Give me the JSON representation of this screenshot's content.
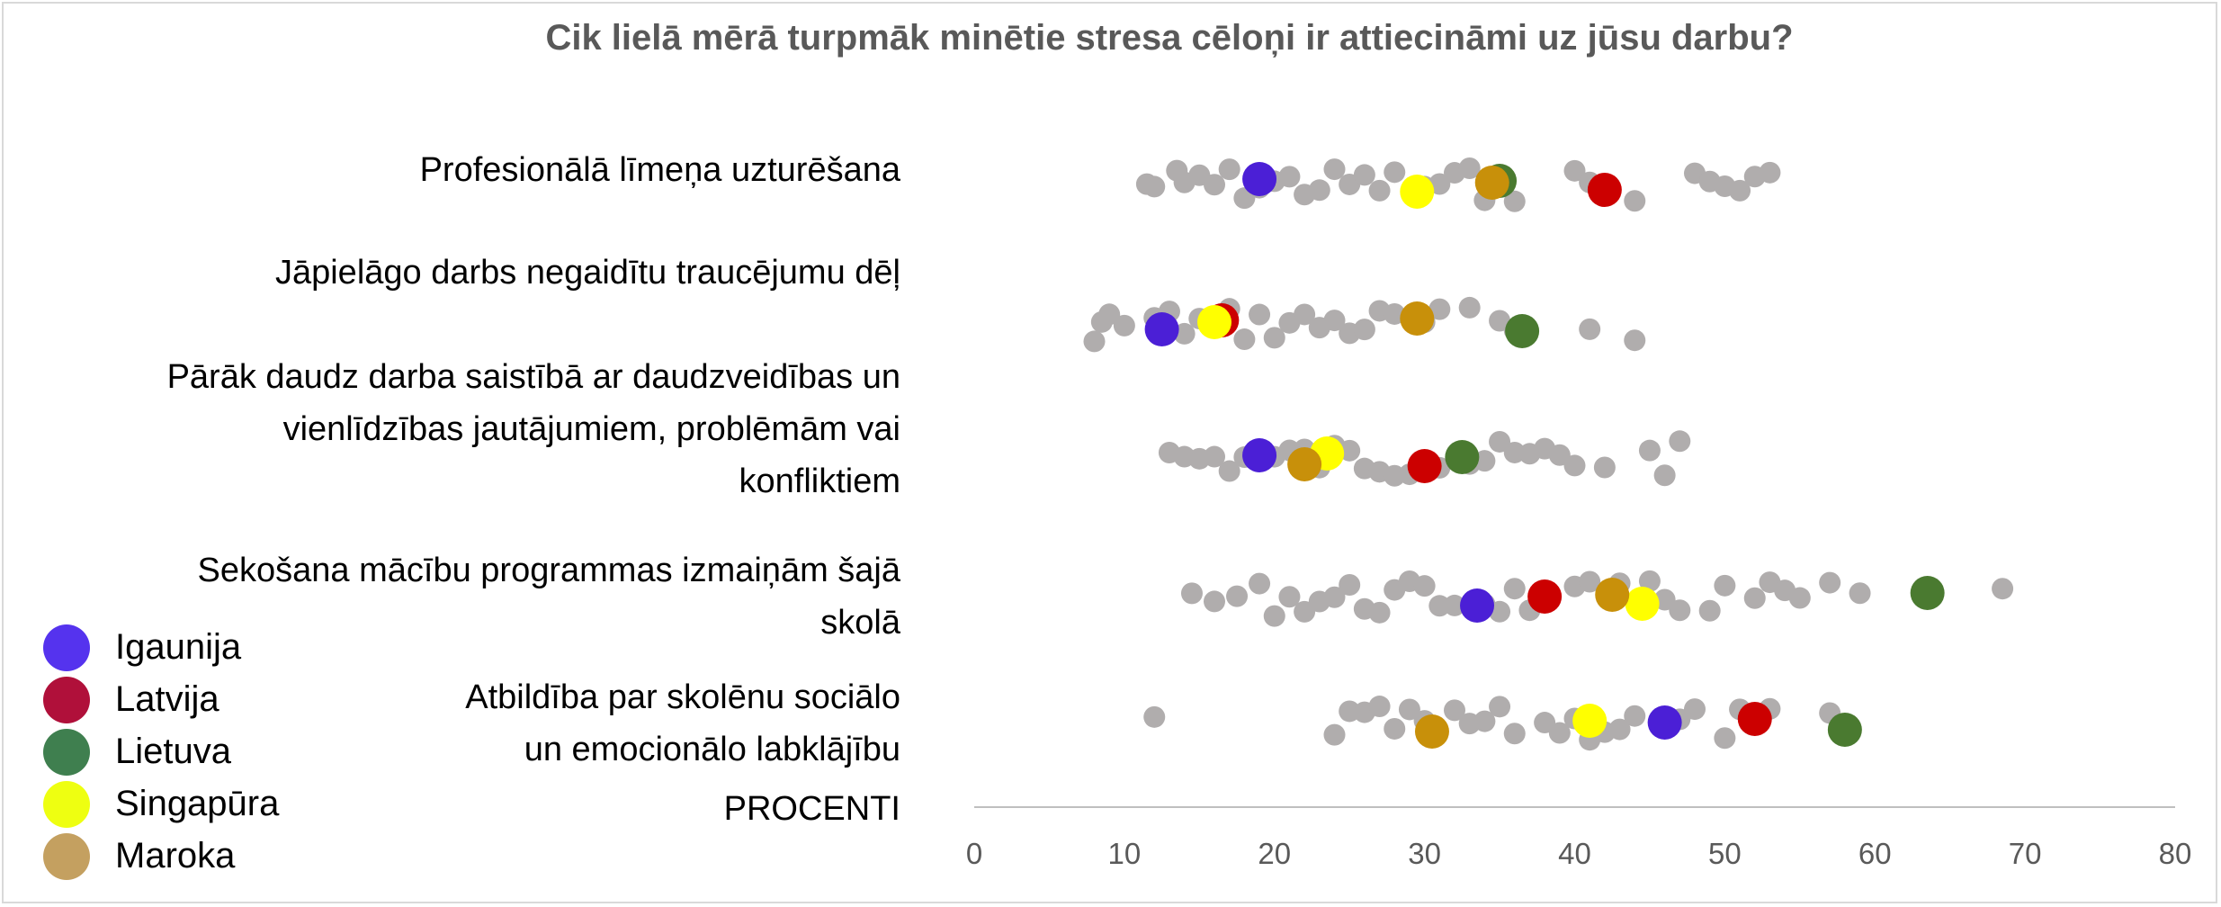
{
  "chart_data": {
    "type": "scatter",
    "title": "Cik lielā mērā turpmāk minētie stresa cēloņi ir attiecināmi uz jūsu darbu?",
    "xlabel": "PROCENTI",
    "xlim": [
      0,
      80
    ],
    "x_ticks": [
      "0",
      "10",
      "20",
      "30",
      "40",
      "50",
      "60",
      "70",
      "80"
    ],
    "grid": false,
    "legend_position": "bottom-left",
    "categories": [
      {
        "lines": [
          "Profesionālā līmeņa uzturēšana"
        ]
      },
      {
        "lines": [
          "Jāpielāgo darbs negaidītu traucējumu dēļ"
        ]
      },
      {
        "lines": [
          "Pārāk daudz darba saistībā ar daudzveidības un",
          "vienlīdzības jautājumiem, problēmām vai",
          "konfliktiem"
        ]
      },
      {
        "lines": [
          "Sekošana mācību programmas izmaiņām šajā",
          "skolā"
        ]
      },
      {
        "lines": [
          "Atbildība par skolēnu sociālo",
          "un emocionālo labklājību"
        ]
      }
    ],
    "other_countries_color": "#b0adad",
    "other_countries": [
      [
        11.5,
        12,
        13.5,
        15,
        14,
        16,
        17,
        18,
        19,
        20,
        21,
        22,
        23,
        24,
        25,
        26,
        27,
        28,
        30,
        31,
        32,
        33,
        34,
        36,
        40,
        41,
        44,
        48,
        49,
        50,
        51,
        52,
        53
      ],
      [
        8,
        8.5,
        9,
        10,
        12,
        13,
        14,
        15,
        16.5,
        17,
        18,
        19,
        20,
        21,
        22,
        23,
        24,
        25,
        26,
        27,
        28,
        30,
        31,
        33,
        35,
        36,
        41,
        44
      ],
      [
        13,
        14,
        15,
        16,
        17,
        18,
        20,
        21,
        22,
        23,
        24,
        25,
        26,
        27,
        28,
        29,
        30,
        31,
        33,
        34,
        35,
        36,
        37,
        38,
        39,
        40,
        42,
        45,
        46,
        47
      ],
      [
        14.5,
        16,
        17.5,
        19,
        20,
        21,
        22,
        23,
        24,
        25,
        26,
        27,
        28,
        29,
        30,
        31,
        32,
        34,
        35,
        36,
        37,
        40,
        41,
        43,
        45,
        46,
        47,
        49,
        50,
        52,
        53,
        54,
        55,
        57,
        59,
        68.5
      ],
      [
        12,
        24,
        25,
        26,
        27,
        28,
        29,
        30,
        32,
        33,
        34,
        35,
        36,
        38,
        39,
        40,
        41,
        42,
        43,
        44,
        47,
        48,
        50,
        51,
        53,
        57
      ]
    ],
    "series": [
      {
        "name": "Igaunija",
        "color": "#4b1fd6",
        "values": [
          19,
          12.5,
          19,
          33.5,
          46
        ]
      },
      {
        "name": "Latvija",
        "color": "#cc0000",
        "values": [
          42,
          16.5,
          30,
          38,
          52
        ]
      },
      {
        "name": "Lietuva",
        "color": "#4a7a30",
        "values": [
          35,
          36.5,
          32.5,
          63.5,
          58
        ]
      },
      {
        "name": "Singapūra",
        "color": "#ffff00",
        "values": [
          29.5,
          16,
          23.5,
          44.5,
          41
        ]
      },
      {
        "name": "Maroka",
        "color": "#c8900a",
        "values": [
          34.5,
          29.5,
          22,
          42.5,
          30.5
        ]
      }
    ]
  },
  "legend": [
    {
      "label": "Igaunija",
      "color": "#5533ee"
    },
    {
      "label": "Latvija",
      "color": "#b0103a"
    },
    {
      "label": "Lietuva",
      "color": "#3f7f4f"
    },
    {
      "label": "Singapūra",
      "color": "#eeff11"
    },
    {
      "label": "Maroka",
      "color": "#c4a060"
    }
  ]
}
